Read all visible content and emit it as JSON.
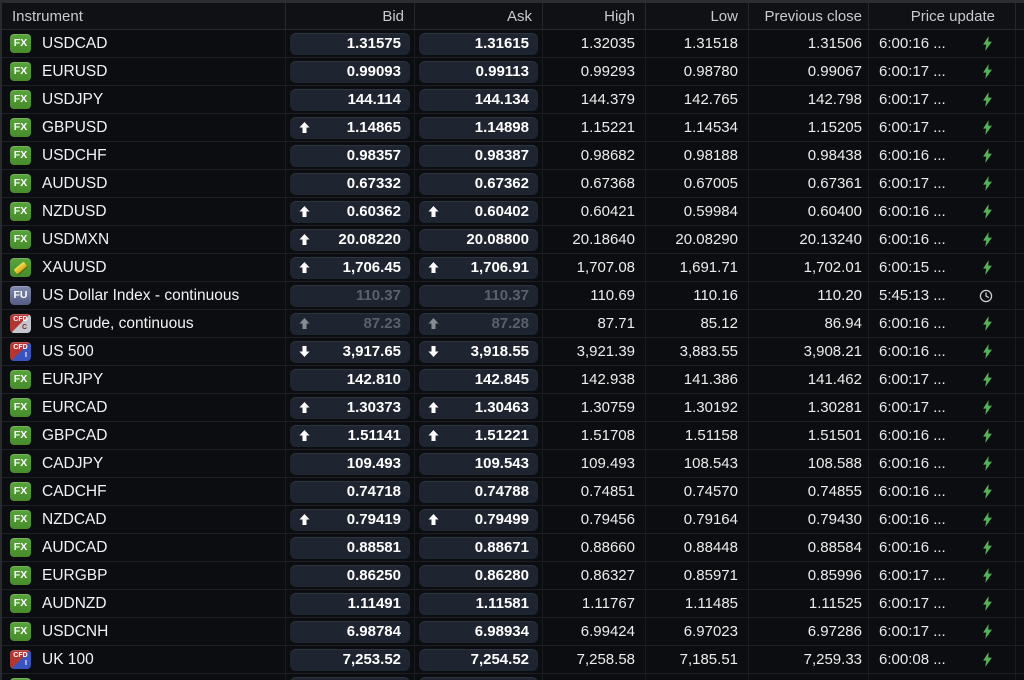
{
  "header": {
    "columns": [
      "Instrument",
      "Bid",
      "Ask",
      "High",
      "Low",
      "Previous close",
      "Price update"
    ]
  },
  "badges": {
    "fx": {
      "line1": "FX"
    },
    "gold": {
      "icon": "gold-ingot"
    },
    "fu": {
      "line1": "FU"
    },
    "cfdc": {
      "line1": "CFD",
      "line2": "C"
    },
    "cfdi": {
      "line1": "CFD",
      "line2": "I"
    }
  },
  "colors": {
    "pill-bg": "#1e2530",
    "bolt-green": "#55b15a",
    "badge-green": "#4f9a31",
    "badge-red": "#b23733",
    "badge-blue": "#3a54bd",
    "badge-silver": "#c3c7d0",
    "badge-slate": "#67719a",
    "gold": "#e8c832"
  },
  "rows": [
    {
      "badge": "fx",
      "name": "USDCAD",
      "bid_arrow": "",
      "bid": "1.31575",
      "ask_arrow": "",
      "ask": "1.31615",
      "high": "1.32035",
      "low": "1.31518",
      "prev": "1.31506",
      "time": "6:00:16 ...",
      "status": "bolt",
      "dimmed": false
    },
    {
      "badge": "fx",
      "name": "EURUSD",
      "bid_arrow": "",
      "bid": "0.99093",
      "ask_arrow": "",
      "ask": "0.99113",
      "high": "0.99293",
      "low": "0.98780",
      "prev": "0.99067",
      "time": "6:00:17 ...",
      "status": "bolt",
      "dimmed": false
    },
    {
      "badge": "fx",
      "name": "USDJPY",
      "bid_arrow": "",
      "bid": "144.114",
      "ask_arrow": "",
      "ask": "144.134",
      "high": "144.379",
      "low": "142.765",
      "prev": "142.798",
      "time": "6:00:17 ...",
      "status": "bolt",
      "dimmed": false
    },
    {
      "badge": "fx",
      "name": "GBPUSD",
      "bid_arrow": "up",
      "bid": "1.14865",
      "ask_arrow": "",
      "ask": "1.14898",
      "high": "1.15221",
      "low": "1.14534",
      "prev": "1.15205",
      "time": "6:00:17 ...",
      "status": "bolt",
      "dimmed": false
    },
    {
      "badge": "fx",
      "name": "USDCHF",
      "bid_arrow": "",
      "bid": "0.98357",
      "ask_arrow": "",
      "ask": "0.98387",
      "high": "0.98682",
      "low": "0.98188",
      "prev": "0.98438",
      "time": "6:00:16 ...",
      "status": "bolt",
      "dimmed": false
    },
    {
      "badge": "fx",
      "name": "AUDUSD",
      "bid_arrow": "",
      "bid": "0.67332",
      "ask_arrow": "",
      "ask": "0.67362",
      "high": "0.67368",
      "low": "0.67005",
      "prev": "0.67361",
      "time": "6:00:17 ...",
      "status": "bolt",
      "dimmed": false
    },
    {
      "badge": "fx",
      "name": "NZDUSD",
      "bid_arrow": "up",
      "bid": "0.60362",
      "ask_arrow": "up",
      "ask": "0.60402",
      "high": "0.60421",
      "low": "0.59984",
      "prev": "0.60400",
      "time": "6:00:16 ...",
      "status": "bolt",
      "dimmed": false
    },
    {
      "badge": "fx",
      "name": "USDMXN",
      "bid_arrow": "up",
      "bid": "20.08220",
      "ask_arrow": "",
      "ask": "20.08800",
      "high": "20.18640",
      "low": "20.08290",
      "prev": "20.13240",
      "time": "6:00:16 ...",
      "status": "bolt",
      "dimmed": false
    },
    {
      "badge": "gold",
      "name": "XAUUSD",
      "bid_arrow": "up",
      "bid": "1,706.45",
      "ask_arrow": "up",
      "ask": "1,706.91",
      "high": "1,707.08",
      "low": "1,691.71",
      "prev": "1,702.01",
      "time": "6:00:15 ...",
      "status": "bolt",
      "dimmed": false
    },
    {
      "badge": "fu",
      "name": "US Dollar Index - continuous",
      "bid_arrow": "",
      "bid": "110.37",
      "ask_arrow": "",
      "ask": "110.37",
      "high": "110.69",
      "low": "110.16",
      "prev": "110.20",
      "time": "5:45:13 ...",
      "status": "clock",
      "dimmed": true
    },
    {
      "badge": "cfdc",
      "name": "US Crude, continuous",
      "bid_arrow": "up",
      "bid": "87.23",
      "ask_arrow": "up",
      "ask": "87.28",
      "high": "87.71",
      "low": "85.12",
      "prev": "86.94",
      "time": "6:00:16 ...",
      "status": "bolt",
      "dimmed": true
    },
    {
      "badge": "cfdi",
      "name": "US 500",
      "bid_arrow": "down",
      "bid": "3,917.65",
      "ask_arrow": "down",
      "ask": "3,918.55",
      "high": "3,921.39",
      "low": "3,883.55",
      "prev": "3,908.21",
      "time": "6:00:16 ...",
      "status": "bolt",
      "dimmed": false
    },
    {
      "badge": "fx",
      "name": "EURJPY",
      "bid_arrow": "",
      "bid": "142.810",
      "ask_arrow": "",
      "ask": "142.845",
      "high": "142.938",
      "low": "141.386",
      "prev": "141.462",
      "time": "6:00:17 ...",
      "status": "bolt",
      "dimmed": false
    },
    {
      "badge": "fx",
      "name": "EURCAD",
      "bid_arrow": "up",
      "bid": "1.30373",
      "ask_arrow": "up",
      "ask": "1.30463",
      "high": "1.30759",
      "low": "1.30192",
      "prev": "1.30281",
      "time": "6:00:17 ...",
      "status": "bolt",
      "dimmed": false
    },
    {
      "badge": "fx",
      "name": "GBPCAD",
      "bid_arrow": "up",
      "bid": "1.51141",
      "ask_arrow": "up",
      "ask": "1.51221",
      "high": "1.51708",
      "low": "1.51158",
      "prev": "1.51501",
      "time": "6:00:16 ...",
      "status": "bolt",
      "dimmed": false
    },
    {
      "badge": "fx",
      "name": "CADJPY",
      "bid_arrow": "",
      "bid": "109.493",
      "ask_arrow": "",
      "ask": "109.543",
      "high": "109.493",
      "low": "108.543",
      "prev": "108.588",
      "time": "6:00:16 ...",
      "status": "bolt",
      "dimmed": false
    },
    {
      "badge": "fx",
      "name": "CADCHF",
      "bid_arrow": "",
      "bid": "0.74718",
      "ask_arrow": "",
      "ask": "0.74788",
      "high": "0.74851",
      "low": "0.74570",
      "prev": "0.74855",
      "time": "6:00:16 ...",
      "status": "bolt",
      "dimmed": false
    },
    {
      "badge": "fx",
      "name": "NZDCAD",
      "bid_arrow": "up",
      "bid": "0.79419",
      "ask_arrow": "up",
      "ask": "0.79499",
      "high": "0.79456",
      "low": "0.79164",
      "prev": "0.79430",
      "time": "6:00:16 ...",
      "status": "bolt",
      "dimmed": false
    },
    {
      "badge": "fx",
      "name": "AUDCAD",
      "bid_arrow": "",
      "bid": "0.88581",
      "ask_arrow": "",
      "ask": "0.88671",
      "high": "0.88660",
      "low": "0.88448",
      "prev": "0.88584",
      "time": "6:00:16 ...",
      "status": "bolt",
      "dimmed": false
    },
    {
      "badge": "fx",
      "name": "EURGBP",
      "bid_arrow": "",
      "bid": "0.86250",
      "ask_arrow": "",
      "ask": "0.86280",
      "high": "0.86327",
      "low": "0.85971",
      "prev": "0.85996",
      "time": "6:00:17 ...",
      "status": "bolt",
      "dimmed": false
    },
    {
      "badge": "fx",
      "name": "AUDNZD",
      "bid_arrow": "",
      "bid": "1.11491",
      "ask_arrow": "",
      "ask": "1.11581",
      "high": "1.11767",
      "low": "1.11485",
      "prev": "1.11525",
      "time": "6:00:17 ...",
      "status": "bolt",
      "dimmed": false
    },
    {
      "badge": "fx",
      "name": "USDCNH",
      "bid_arrow": "",
      "bid": "6.98784",
      "ask_arrow": "",
      "ask": "6.98934",
      "high": "6.99424",
      "low": "6.97023",
      "prev": "6.97286",
      "time": "6:00:17 ...",
      "status": "bolt",
      "dimmed": false
    },
    {
      "badge": "cfdi",
      "name": "UK 100",
      "bid_arrow": "",
      "bid": "7,253.52",
      "ask_arrow": "",
      "ask": "7,254.52",
      "high": "7,258.58",
      "low": "7,185.51",
      "prev": "7,259.33",
      "time": "6:00:08 ...",
      "status": "bolt",
      "dimmed": false
    }
  ],
  "partial_row": {
    "visible": true,
    "badge": "fx"
  }
}
